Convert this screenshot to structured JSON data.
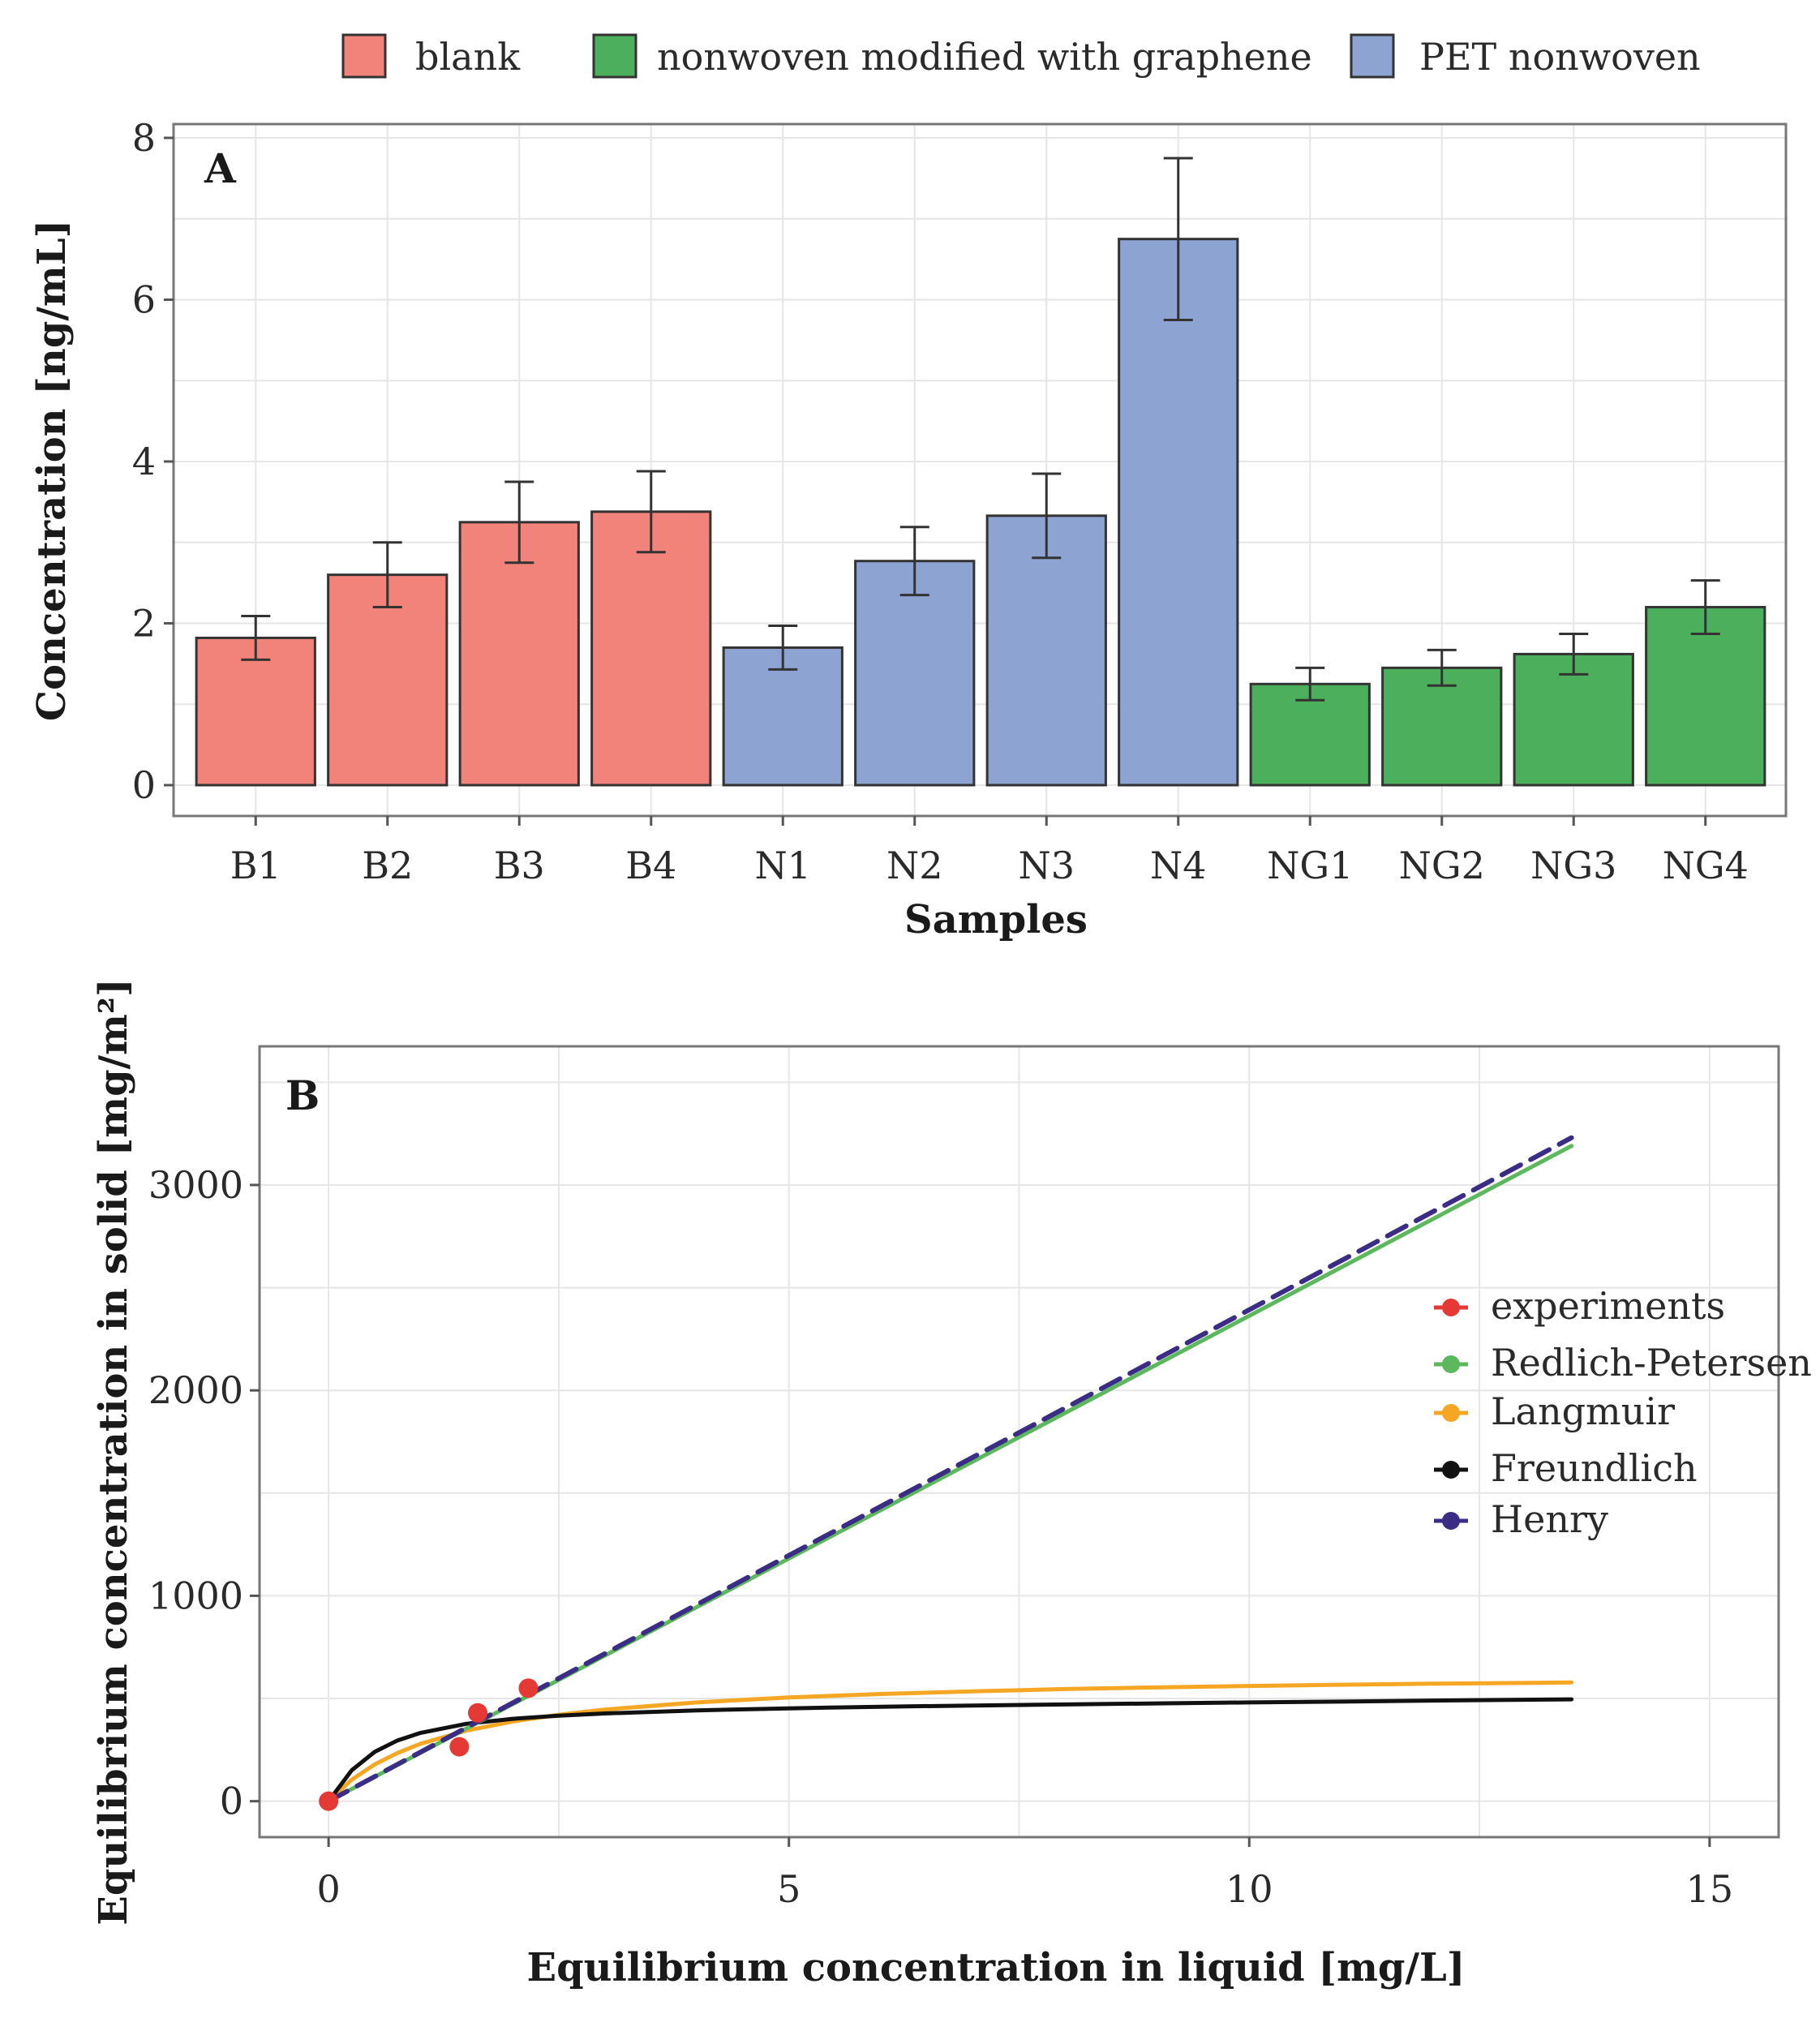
{
  "colors": {
    "blank": "#f1837a",
    "graphene": "#4caf5b",
    "pet": "#8da4d3",
    "experiments": "#e53935",
    "redlich_petersen": "#5cb85c",
    "langmuir": "#f5a623",
    "freundlich": "#111111",
    "henry": "#3b2d86"
  },
  "chart_data": [
    {
      "panel": "A",
      "type": "bar",
      "title": "",
      "xlabel": "Samples",
      "ylabel": "Concentration [ng/mL]",
      "ylim": [
        0,
        8
      ],
      "yticks": [
        "0",
        "2",
        "4",
        "6",
        "8"
      ],
      "legend": [
        {
          "key": "blank",
          "label": "blank"
        },
        {
          "key": "graphene",
          "label": "nonwoven modified with graphene"
        },
        {
          "key": "pet",
          "label": "PET nonwoven"
        }
      ],
      "legend_position": "top",
      "categories": [
        "B1",
        "B2",
        "B3",
        "B4",
        "N1",
        "N2",
        "N3",
        "N4",
        "NG1",
        "NG2",
        "NG3",
        "NG4"
      ],
      "groups": [
        "blank",
        "blank",
        "blank",
        "blank",
        "pet",
        "pet",
        "pet",
        "pet",
        "graphene",
        "graphene",
        "graphene",
        "graphene"
      ],
      "values": [
        1.82,
        2.6,
        3.25,
        3.38,
        1.7,
        2.77,
        3.33,
        6.75,
        1.25,
        1.45,
        1.62,
        2.2
      ],
      "errors": [
        0.27,
        0.4,
        0.5,
        0.5,
        0.27,
        0.42,
        0.52,
        1.0,
        0.2,
        0.22,
        0.25,
        0.33
      ]
    },
    {
      "panel": "B",
      "type": "line",
      "title": "",
      "xlabel": "Equilibrium concentration in liquid [mg/L]",
      "ylabel": "Equilibrium concentration in solid [mg/m²]",
      "xlim": [
        -0.75,
        15.75
      ],
      "ylim": [
        -175,
        3675
      ],
      "xticks": [
        "0",
        "5",
        "10",
        "15"
      ],
      "yticks": [
        "0",
        "1000",
        "2000",
        "3000"
      ],
      "legend_position": "right",
      "legend": [
        {
          "key": "experiments",
          "label": "experiments"
        },
        {
          "key": "redlich_petersen",
          "label": "Redlich-Petersen"
        },
        {
          "key": "langmuir",
          "label": "Langmuir"
        },
        {
          "key": "freundlich",
          "label": "Freundlich"
        },
        {
          "key": "henry",
          "label": "Henry"
        }
      ],
      "experiments": {
        "x": [
          0,
          1.42,
          1.62,
          2.17
        ],
        "y": [
          0,
          265,
          430,
          550
        ]
      },
      "series": [
        {
          "key": "redlich_petersen",
          "name": "Redlich-Petersen",
          "x": [
            0,
            13.5
          ],
          "y": [
            0,
            3190
          ]
        },
        {
          "key": "langmuir",
          "name": "Langmuir",
          "x": [
            0,
            0.25,
            0.5,
            0.75,
            1,
            1.5,
            2,
            2.5,
            3,
            4,
            5,
            6,
            7,
            8,
            9,
            10,
            11,
            12,
            13.5
          ],
          "y": [
            0,
            104,
            179,
            235,
            280,
            344,
            388,
            421,
            446,
            481,
            505,
            522,
            535,
            546,
            554,
            561,
            567,
            572,
            578
          ]
        },
        {
          "key": "freundlich",
          "name": "Freundlich",
          "x": [
            0,
            0.25,
            0.5,
            0.75,
            1,
            1.5,
            2,
            2.5,
            3,
            4,
            5,
            6,
            7,
            8,
            9,
            10,
            11,
            12,
            13.5
          ],
          "y": [
            0,
            150,
            240,
            296,
            333,
            377,
            401,
            416,
            427,
            442,
            452,
            460,
            466,
            471,
            476,
            481,
            485,
            490,
            496
          ]
        },
        {
          "key": "henry",
          "name": "Henry",
          "x": [
            0,
            13.5
          ],
          "y": [
            0,
            3230
          ],
          "dashed": true
        }
      ]
    }
  ],
  "panel_labels": {
    "a": "A",
    "b": "B"
  }
}
